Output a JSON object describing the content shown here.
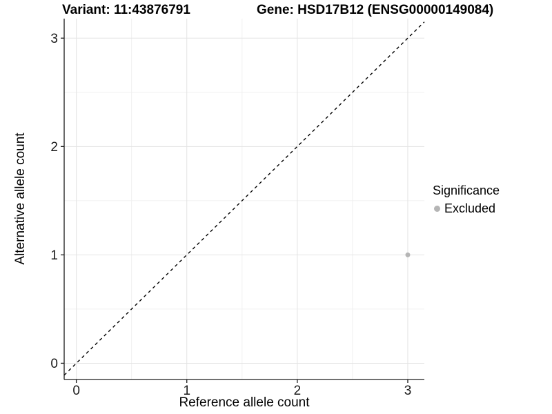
{
  "chart_data": {
    "type": "scatter",
    "title_left": "Variant: 11:43876791",
    "title_right": "Gene: HSD17B12 (ENSG00000149084)",
    "xlabel": "Reference allele count",
    "ylabel": "Alternative allele count",
    "xlim": [
      -0.11,
      3.15
    ],
    "ylim": [
      -0.15,
      3.18
    ],
    "xtick_values": [
      0,
      1,
      2,
      3
    ],
    "xtick_labels": [
      "0",
      "1",
      "2",
      "3"
    ],
    "ytick_values": [
      0,
      1,
      2,
      3
    ],
    "ytick_labels": [
      "0",
      "1",
      "2",
      "3"
    ],
    "minor_xticks": [
      0.5,
      1.5,
      2.5
    ],
    "minor_yticks": [
      0.5,
      1.5,
      2.5
    ],
    "grid": "major+minor",
    "identity_line": {
      "slope": 1,
      "intercept": 0,
      "style": "dashed",
      "color": "#000000"
    },
    "series": [
      {
        "name": "Excluded",
        "marker": "circle",
        "size": 3.5,
        "color": "#b5b5b5",
        "points": [
          [
            3,
            1
          ]
        ]
      }
    ],
    "legend": {
      "title": "Significance",
      "position": "right",
      "entries": [
        {
          "label": "Excluded",
          "color": "#b5b5b5"
        }
      ]
    },
    "colors": {
      "grid_major": "#e3e3e3",
      "grid_minor": "#f0f0f0",
      "axis_line": "#1a1a1a",
      "tick_label": "#1a1a1a",
      "background": "#ffffff"
    }
  }
}
